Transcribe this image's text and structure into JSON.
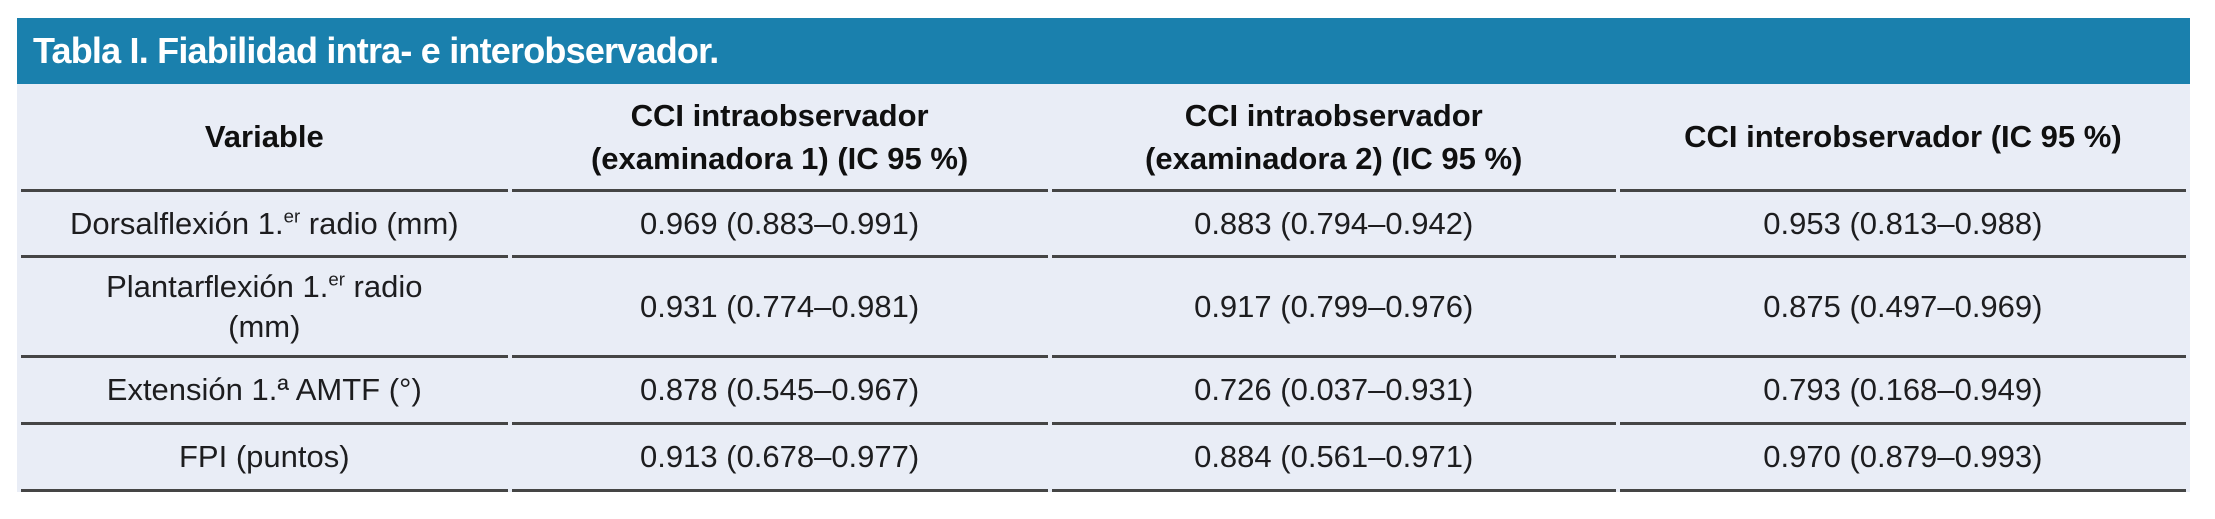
{
  "title": "Tabla I. Fiabilidad intra- e interobservador.",
  "colors": {
    "accent_teal": "#1a80ad",
    "row_background": "#e9edf6",
    "divider_line": "#454545",
    "title_text": "#ffffff",
    "body_text": "#1d1d1f"
  },
  "table": {
    "headers": [
      {
        "line1": "Variable",
        "line2": ""
      },
      {
        "line1": "CCI intraobservador",
        "line2": "(examinadora 1) (IC 95 %)"
      },
      {
        "line1": "CCI intraobservador",
        "line2": "(examinadora 2) (IC 95 %)"
      },
      {
        "line1": "CCI interobservador (IC 95 %)",
        "line2": ""
      }
    ],
    "rows": [
      {
        "variable": {
          "pre": "Dorsalflexión 1.",
          "sup": "er",
          "post": " radio (mm)",
          "line2": ""
        },
        "intra1": "0.969 (0.883–0.991)",
        "intra2": "0.883 (0.794–0.942)",
        "inter": "0.953 (0.813–0.988)"
      },
      {
        "variable": {
          "pre": "Plantarflexión 1.",
          "sup": "er",
          "post": " radio",
          "line2": "(mm)"
        },
        "intra1": "0.931 (0.774–0.981)",
        "intra2": "0.917 (0.799–0.976)",
        "inter": "0.875 (0.497–0.969)"
      },
      {
        "variable": {
          "pre": "Extensión 1.ª AMTF (°)",
          "sup": "",
          "post": "",
          "line2": ""
        },
        "intra1": "0.878 (0.545–0.967)",
        "intra2": "0.726 (0.037–0.931)",
        "inter": "0.793 (0.168–0.949)"
      },
      {
        "variable": {
          "pre": "FPI (puntos)",
          "sup": "",
          "post": "",
          "line2": ""
        },
        "intra1": "0.913 (0.678–0.977)",
        "intra2": "0.884 (0.561–0.971)",
        "inter": "0.970 (0.879–0.993)"
      }
    ]
  }
}
